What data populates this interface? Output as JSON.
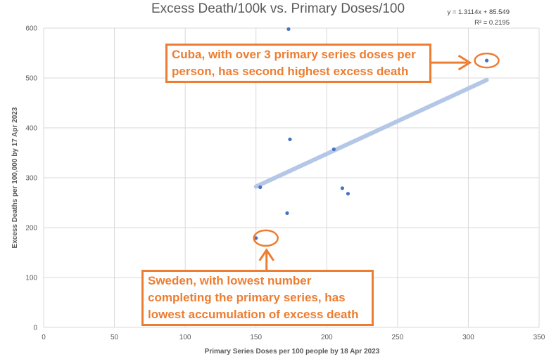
{
  "chart_data": {
    "type": "scatter",
    "title": "Excess Death/100k vs. Primary Doses/100",
    "xlabel": "Primary Series Doses per 100 people by 18 Apr 2023",
    "ylabel": "Excess Deaths per 100,000 by 17 Apr 2023",
    "xlim": [
      0,
      350
    ],
    "ylim": [
      0,
      600
    ],
    "x_ticks": [
      0,
      50,
      100,
      150,
      200,
      250,
      300,
      350
    ],
    "y_ticks": [
      0,
      100,
      200,
      300,
      400,
      500,
      600
    ],
    "grid": "vertical and horizontal",
    "points": [
      {
        "x": 173,
        "y": 598
      },
      {
        "x": 313,
        "y": 535
      },
      {
        "x": 174,
        "y": 377
      },
      {
        "x": 205,
        "y": 357
      },
      {
        "x": 153,
        "y": 281
      },
      {
        "x": 211,
        "y": 279
      },
      {
        "x": 215,
        "y": 268
      },
      {
        "x": 172,
        "y": 229
      },
      {
        "x": 150,
        "y": 179
      }
    ],
    "trendline": {
      "slope": 1.3114,
      "intercept": 85.549,
      "x_range": [
        150,
        313
      ],
      "equation": "y = 1.3114x + 85.549",
      "r_squared": "R² = 0.2195"
    },
    "annotations": [
      {
        "id": "cuba",
        "text": "Cuba, with over 3 primary series doses per person, has second highest excess death",
        "target": {
          "x": 313,
          "y": 535
        }
      },
      {
        "id": "sweden",
        "text": "Sweden, with lowest number completing the primary series, has lowest accumulation of excess death",
        "target": {
          "x": 150,
          "y": 179
        }
      }
    ],
    "colors": {
      "points": "#4472C4",
      "trendline": "#B4C7E7",
      "annotation": "#ED7D31",
      "grid": "#D9D9D9"
    }
  }
}
